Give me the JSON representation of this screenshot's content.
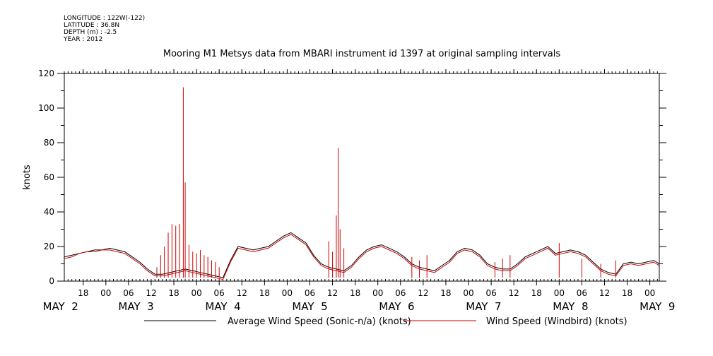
{
  "meta": {
    "longitude": "LONGITUDE : 122W(-122)",
    "latitude": "LATITUDE : 36.8N",
    "depth": "DEPTH (m) : -2.5",
    "year": "YEAR : 2012"
  },
  "chart_data": {
    "type": "line",
    "title": "Mooring M1 Metsys data from MBARI instrument id 1397 at original sampling intervals",
    "xlabel": "",
    "ylabel": "knots",
    "ylim": [
      0,
      120
    ],
    "yticks": [
      0,
      20,
      40,
      60,
      80,
      100,
      120
    ],
    "xlim_hours": [
      13,
      170.5
    ],
    "x_hour_ticks": [
      {
        "h": 18,
        "label": "18"
      },
      {
        "h": 24,
        "label": "00"
      },
      {
        "h": 30,
        "label": "06"
      },
      {
        "h": 36,
        "label": "12"
      },
      {
        "h": 42,
        "label": "18"
      },
      {
        "h": 48,
        "label": "00"
      },
      {
        "h": 54,
        "label": "06"
      },
      {
        "h": 60,
        "label": "12"
      },
      {
        "h": 66,
        "label": "18"
      },
      {
        "h": 72,
        "label": "00"
      },
      {
        "h": 78,
        "label": "06"
      },
      {
        "h": 84,
        "label": "12"
      },
      {
        "h": 90,
        "label": "18"
      },
      {
        "h": 96,
        "label": "00"
      },
      {
        "h": 102,
        "label": "06"
      },
      {
        "h": 108,
        "label": "12"
      },
      {
        "h": 114,
        "label": "18"
      },
      {
        "h": 120,
        "label": "00"
      },
      {
        "h": 126,
        "label": "06"
      },
      {
        "h": 132,
        "label": "12"
      },
      {
        "h": 138,
        "label": "18"
      },
      {
        "h": 144,
        "label": "00"
      },
      {
        "h": 150,
        "label": "06"
      },
      {
        "h": 156,
        "label": "12"
      },
      {
        "h": 162,
        "label": "18"
      },
      {
        "h": 168,
        "label": "00"
      }
    ],
    "x_day_labels": [
      {
        "h": 12,
        "label": "MAY  2"
      },
      {
        "h": 32,
        "label": "MAY  3"
      },
      {
        "h": 55,
        "label": "MAY  4"
      },
      {
        "h": 78,
        "label": "MAY  5"
      },
      {
        "h": 101,
        "label": "MAY  6"
      },
      {
        "h": 124,
        "label": "MAY  7"
      },
      {
        "h": 147,
        "label": "MAY  8"
      },
      {
        "h": 170,
        "label": "MAY  9"
      }
    ],
    "series": [
      {
        "name": "Average Wind Speed (Sonic-n/a) (knots)",
        "color": "#000000",
        "x": [
          13,
          15,
          17,
          19,
          21,
          23,
          25,
          27,
          29,
          31,
          33,
          35,
          37,
          39,
          41,
          43,
          45,
          47,
          49,
          51,
          53,
          55,
          57,
          59,
          61,
          63,
          65,
          67,
          69,
          71,
          73,
          75,
          77,
          79,
          81,
          83,
          85,
          87,
          89,
          91,
          93,
          95,
          97,
          99,
          101,
          103,
          105,
          107,
          109,
          111,
          113,
          115,
          117,
          119,
          121,
          123,
          125,
          127,
          129,
          131,
          133,
          135,
          137,
          139,
          141,
          143,
          145,
          147,
          149,
          151,
          153,
          155,
          157,
          159,
          161,
          163,
          165,
          167,
          169,
          170.5
        ],
        "y": [
          14,
          15,
          16,
          17,
          18,
          18,
          19,
          18,
          17,
          14,
          11,
          7,
          4,
          4,
          5,
          6,
          7,
          6,
          5,
          4,
          3,
          2,
          12,
          20,
          19,
          18,
          19,
          20,
          23,
          26,
          28,
          25,
          22,
          15,
          10,
          8,
          7,
          6,
          9,
          14,
          18,
          20,
          21,
          19,
          17,
          14,
          10,
          8,
          7,
          6,
          9,
          12,
          17,
          19,
          18,
          15,
          10,
          8,
          7,
          7,
          10,
          14,
          16,
          18,
          20,
          16,
          17,
          18,
          17,
          15,
          11,
          7,
          5,
          4,
          10,
          11,
          10,
          11,
          12,
          10
        ]
      },
      {
        "name": "Wind Speed (Windbird) (knots)",
        "color": "#cc0000",
        "x": [
          13,
          15,
          17,
          19,
          21,
          23,
          25,
          27,
          29,
          31,
          33,
          35,
          37,
          39,
          41,
          43,
          45,
          47,
          49,
          51,
          53,
          55,
          57,
          59,
          61,
          63,
          65,
          67,
          69,
          71,
          73,
          75,
          77,
          79,
          81,
          83,
          85,
          87,
          89,
          91,
          93,
          95,
          97,
          99,
          101,
          103,
          105,
          107,
          109,
          111,
          113,
          115,
          117,
          119,
          121,
          123,
          125,
          127,
          129,
          131,
          133,
          135,
          137,
          139,
          141,
          143,
          145,
          147,
          149,
          151,
          153,
          155,
          157,
          159,
          161,
          163,
          165,
          167,
          169,
          170.5
        ],
        "y": [
          13,
          14,
          16,
          17,
          17,
          18,
          18,
          17,
          16,
          13,
          10,
          6,
          3,
          3,
          4,
          5,
          6,
          5,
          4,
          3,
          2,
          1,
          11,
          19,
          18,
          17,
          18,
          19,
          22,
          25,
          27,
          24,
          21,
          14,
          9,
          7,
          6,
          5,
          8,
          13,
          17,
          19,
          20,
          18,
          16,
          13,
          9,
          7,
          6,
          5,
          8,
          11,
          16,
          18,
          17,
          14,
          9,
          7,
          6,
          6,
          9,
          13,
          15,
          17,
          19,
          15,
          16,
          17,
          16,
          14,
          10,
          6,
          4,
          3,
          9,
          10,
          9,
          10,
          11,
          9
        ]
      }
    ],
    "spikes": [
      {
        "x": 37.5,
        "y": 8
      },
      {
        "x": 38.5,
        "y": 15
      },
      {
        "x": 39.5,
        "y": 20
      },
      {
        "x": 40.5,
        "y": 28
      },
      {
        "x": 41.5,
        "y": 33
      },
      {
        "x": 42.5,
        "y": 32
      },
      {
        "x": 43.5,
        "y": 33
      },
      {
        "x": 44.5,
        "y": 112
      },
      {
        "x": 45,
        "y": 57
      },
      {
        "x": 46,
        "y": 21
      },
      {
        "x": 47,
        "y": 17
      },
      {
        "x": 48,
        "y": 16
      },
      {
        "x": 49,
        "y": 18
      },
      {
        "x": 50,
        "y": 15
      },
      {
        "x": 51,
        "y": 14
      },
      {
        "x": 52,
        "y": 12
      },
      {
        "x": 53,
        "y": 11
      },
      {
        "x": 54,
        "y": 8
      },
      {
        "x": 83,
        "y": 23
      },
      {
        "x": 84,
        "y": 17
      },
      {
        "x": 85,
        "y": 38
      },
      {
        "x": 85.5,
        "y": 77
      },
      {
        "x": 86,
        "y": 30
      },
      {
        "x": 87,
        "y": 19
      },
      {
        "x": 105,
        "y": 14
      },
      {
        "x": 107,
        "y": 12
      },
      {
        "x": 109,
        "y": 15
      },
      {
        "x": 127,
        "y": 11
      },
      {
        "x": 129,
        "y": 13
      },
      {
        "x": 131,
        "y": 15
      },
      {
        "x": 144,
        "y": 22
      },
      {
        "x": 150,
        "y": 13
      },
      {
        "x": 155,
        "y": 10
      },
      {
        "x": 159,
        "y": 12
      }
    ]
  }
}
